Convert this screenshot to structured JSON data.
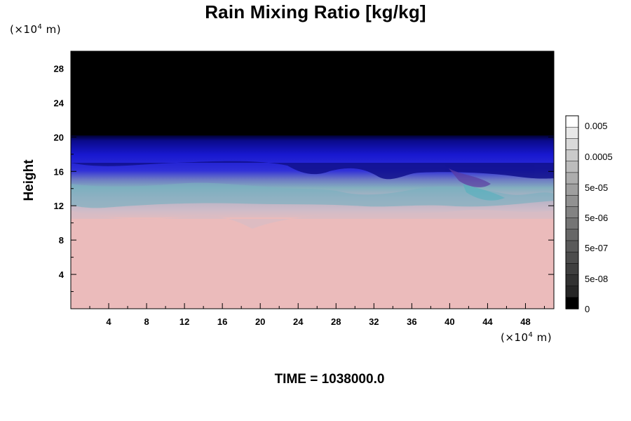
{
  "chart_data": {
    "type": "heatmap",
    "title": "Rain Mixing Ratio [kg/kg]",
    "ylabel": "Height",
    "xlabel": "",
    "x_unit": {
      "prefix": "(×10",
      "exp": "4",
      "suffix": " m)"
    },
    "y_unit": {
      "prefix": "(×10",
      "exp": "4",
      "suffix": " m)"
    },
    "xlim": [
      0,
      51
    ],
    "ylim": [
      0,
      30
    ],
    "x_ticks": [
      4,
      8,
      12,
      16,
      20,
      24,
      28,
      32,
      36,
      40,
      44,
      48
    ],
    "y_ticks": [
      4,
      8,
      12,
      16,
      20,
      24,
      28
    ],
    "regions": [
      {
        "name": "upper-zero-region",
        "y_range": [
          20,
          30
        ],
        "color": "#000000"
      },
      {
        "name": "blue-layer",
        "y_range": [
          15.5,
          20
        ],
        "color": "#1a1acc"
      },
      {
        "name": "mixed-layer",
        "y_range": [
          11,
          15.5
        ],
        "color": "#9aa8c8"
      },
      {
        "name": "lower-region",
        "y_range": [
          0,
          11
        ],
        "color": "#ebbbbb"
      }
    ],
    "colorbar": {
      "levels": [
        "0.005",
        "0.0005",
        "5e-05",
        "5e-06",
        "5e-07",
        "5e-08",
        "0"
      ],
      "steps": [
        "#ffffff",
        "#e8e8e8",
        "#d9d9d9",
        "#cacaca",
        "#bcbcbc",
        "#adadad",
        "#9f9f9f",
        "#919191",
        "#838383",
        "#757575",
        "#676767",
        "#5a5a5a",
        "#4c4c4c",
        "#3f3f3f",
        "#323232",
        "#262626",
        "#000000"
      ]
    }
  },
  "time_label": "TIME = 1038000.0"
}
